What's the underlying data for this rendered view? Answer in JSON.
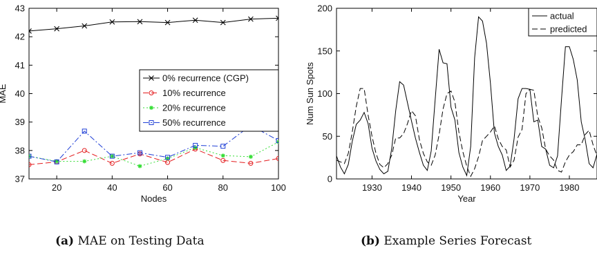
{
  "captions": [
    {
      "tag": "(a)",
      "text": "MAE on Testing Data"
    },
    {
      "tag": "(b)",
      "text": "Example Series Forecast"
    }
  ],
  "chart_data": [
    {
      "type": "line",
      "title": "",
      "xlabel": "Nodes",
      "ylabel": "MAE",
      "xlim": [
        10,
        100
      ],
      "ylim": [
        37,
        43
      ],
      "xticks": [
        20,
        40,
        60,
        80,
        100
      ],
      "yticks": [
        37,
        38,
        39,
        40,
        41,
        42,
        43
      ],
      "grid": false,
      "legend": "center-right",
      "x": [
        10,
        20,
        30,
        40,
        50,
        60,
        70,
        80,
        90,
        100
      ],
      "series": [
        {
          "name": "0% recurrence (CGP)",
          "color": "#000000",
          "marker": "x",
          "dash": "solid",
          "values": [
            42.2,
            42.28,
            42.38,
            42.52,
            42.53,
            42.5,
            42.58,
            42.5,
            42.62,
            42.65
          ]
        },
        {
          "name": "10% recurrence",
          "color": "#e31a1c",
          "marker": "circle",
          "dash": "dashed",
          "values": [
            37.5,
            37.6,
            38.0,
            37.55,
            37.88,
            37.58,
            38.05,
            37.65,
            37.55,
            37.72
          ]
        },
        {
          "name": "20% recurrence",
          "color": "#33dd33",
          "marker": "star",
          "dash": "dotted",
          "values": [
            37.8,
            37.62,
            37.62,
            37.8,
            37.45,
            37.72,
            38.1,
            37.82,
            37.78,
            38.3
          ]
        },
        {
          "name": "50% recurrence",
          "color": "#1f3fd6",
          "marker": "square",
          "dash": "dashdot",
          "values": [
            37.8,
            37.6,
            38.68,
            37.8,
            37.92,
            37.76,
            38.18,
            38.15,
            38.88,
            38.35
          ]
        }
      ]
    },
    {
      "type": "line",
      "title": "",
      "xlabel": "Year",
      "ylabel": "Num Sun Spots",
      "xlim": [
        1921,
        1987
      ],
      "ylim": [
        0,
        200
      ],
      "xticks": [
        1930,
        1940,
        1950,
        1960,
        1970,
        1980
      ],
      "yticks": [
        0,
        50,
        100,
        150,
        200
      ],
      "grid": false,
      "legend": "top-right",
      "x": [
        1921,
        1922,
        1923,
        1924,
        1925,
        1926,
        1927,
        1928,
        1929,
        1930,
        1931,
        1932,
        1933,
        1934,
        1935,
        1936,
        1937,
        1938,
        1939,
        1940,
        1941,
        1942,
        1943,
        1944,
        1945,
        1946,
        1947,
        1948,
        1949,
        1950,
        1951,
        1952,
        1953,
        1954,
        1955,
        1956,
        1957,
        1958,
        1959,
        1960,
        1961,
        1962,
        1963,
        1964,
        1965,
        1966,
        1967,
        1968,
        1969,
        1970,
        1971,
        1972,
        1973,
        1974,
        1975,
        1976,
        1977,
        1978,
        1979,
        1980,
        1981,
        1982,
        1983,
        1984,
        1985,
        1986,
        1987
      ],
      "series": [
        {
          "name": "actual",
          "color": "#000000",
          "dash": "solid",
          "values": [
            27,
            14,
            6,
            17,
            44,
            64,
            69,
            78,
            65,
            36,
            21,
            11,
            6,
            9,
            36,
            80,
            114,
            110,
            89,
            68,
            48,
            31,
            16,
            10,
            33,
            93,
            152,
            136,
            135,
            84,
            69,
            31,
            14,
            4,
            38,
            142,
            190,
            185,
            159,
            112,
            54,
            38,
            28,
            10,
            15,
            47,
            94,
            106,
            106,
            105,
            67,
            69,
            38,
            35,
            16,
            13,
            27,
            93,
            155,
            155,
            140,
            116,
            67,
            46,
            18,
            13,
            29
          ]
        },
        {
          "name": "predicted",
          "color": "#000000",
          "dash": "dashed",
          "values": [
            22,
            20,
            18,
            30,
            55,
            85,
            106,
            106,
            75,
            50,
            30,
            17,
            13,
            18,
            28,
            48,
            48,
            53,
            65,
            80,
            74,
            46,
            30,
            20,
            16,
            28,
            52,
            82,
            100,
            103,
            90,
            55,
            32,
            15,
            3,
            12,
            26,
            45,
            50,
            55,
            62,
            47,
            38,
            34,
            14,
            22,
            49,
            58,
            100,
            105,
            104,
            73,
            60,
            35,
            27,
            22,
            10,
            8,
            20,
            28,
            32,
            40,
            40,
            52,
            57,
            40,
            27
          ]
        }
      ]
    }
  ]
}
